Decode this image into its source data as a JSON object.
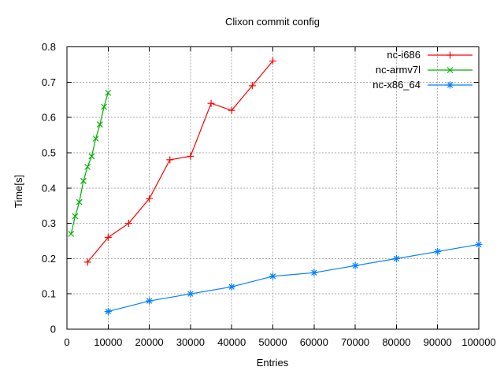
{
  "chart_data": {
    "type": "line",
    "title": "Clixon commit config",
    "xlabel": "Entries",
    "ylabel": "Time[s]",
    "xlim": [
      0,
      100000
    ],
    "ylim": [
      0,
      0.8
    ],
    "grid": "dotted",
    "legend_position": "top-right-inside",
    "xticks": {
      "values": [
        0,
        10000,
        20000,
        30000,
        40000,
        50000,
        60000,
        70000,
        80000,
        90000,
        100000
      ],
      "labels": [
        "0",
        "10000",
        "20000",
        "30000",
        "40000",
        "50000",
        "60000",
        "70000",
        "80000",
        "90000",
        "100000"
      ]
    },
    "yticks": {
      "values": [
        0,
        0.1,
        0.2,
        0.3,
        0.4,
        0.5,
        0.6,
        0.7,
        0.8
      ],
      "labels": [
        "0",
        "0.1",
        "0.2",
        "0.3",
        "0.4",
        "0.5",
        "0.6",
        "0.7",
        "0.8"
      ]
    },
    "colors": {
      "background": "#ffffff",
      "axis": "#000000",
      "text": "#000000",
      "grid": "#a8a8a8"
    },
    "series": [
      {
        "name": "nc-i686",
        "color": "#ff0000",
        "marker": "plus",
        "x": [
          5000,
          10000,
          15000,
          20000,
          25000,
          30000,
          35000,
          40000,
          45000,
          50000
        ],
        "y": [
          0.19,
          0.26,
          0.3,
          0.37,
          0.48,
          0.49,
          0.64,
          0.62,
          0.69,
          0.76
        ]
      },
      {
        "name": "nc-armv7l",
        "color": "#00b000",
        "marker": "cross",
        "x": [
          1000,
          2000,
          3000,
          4000,
          5000,
          6000,
          7000,
          8000,
          9000,
          10000
        ],
        "y": [
          0.27,
          0.32,
          0.36,
          0.42,
          0.46,
          0.49,
          0.54,
          0.58,
          0.63,
          0.67
        ]
      },
      {
        "name": "nc-x86_64",
        "color": "#0080ff",
        "marker": "asterisk",
        "x": [
          10000,
          20000,
          30000,
          40000,
          50000,
          60000,
          70000,
          80000,
          90000,
          100000
        ],
        "y": [
          0.05,
          0.08,
          0.1,
          0.12,
          0.15,
          0.16,
          0.18,
          0.2,
          0.22,
          0.24
        ]
      }
    ]
  }
}
